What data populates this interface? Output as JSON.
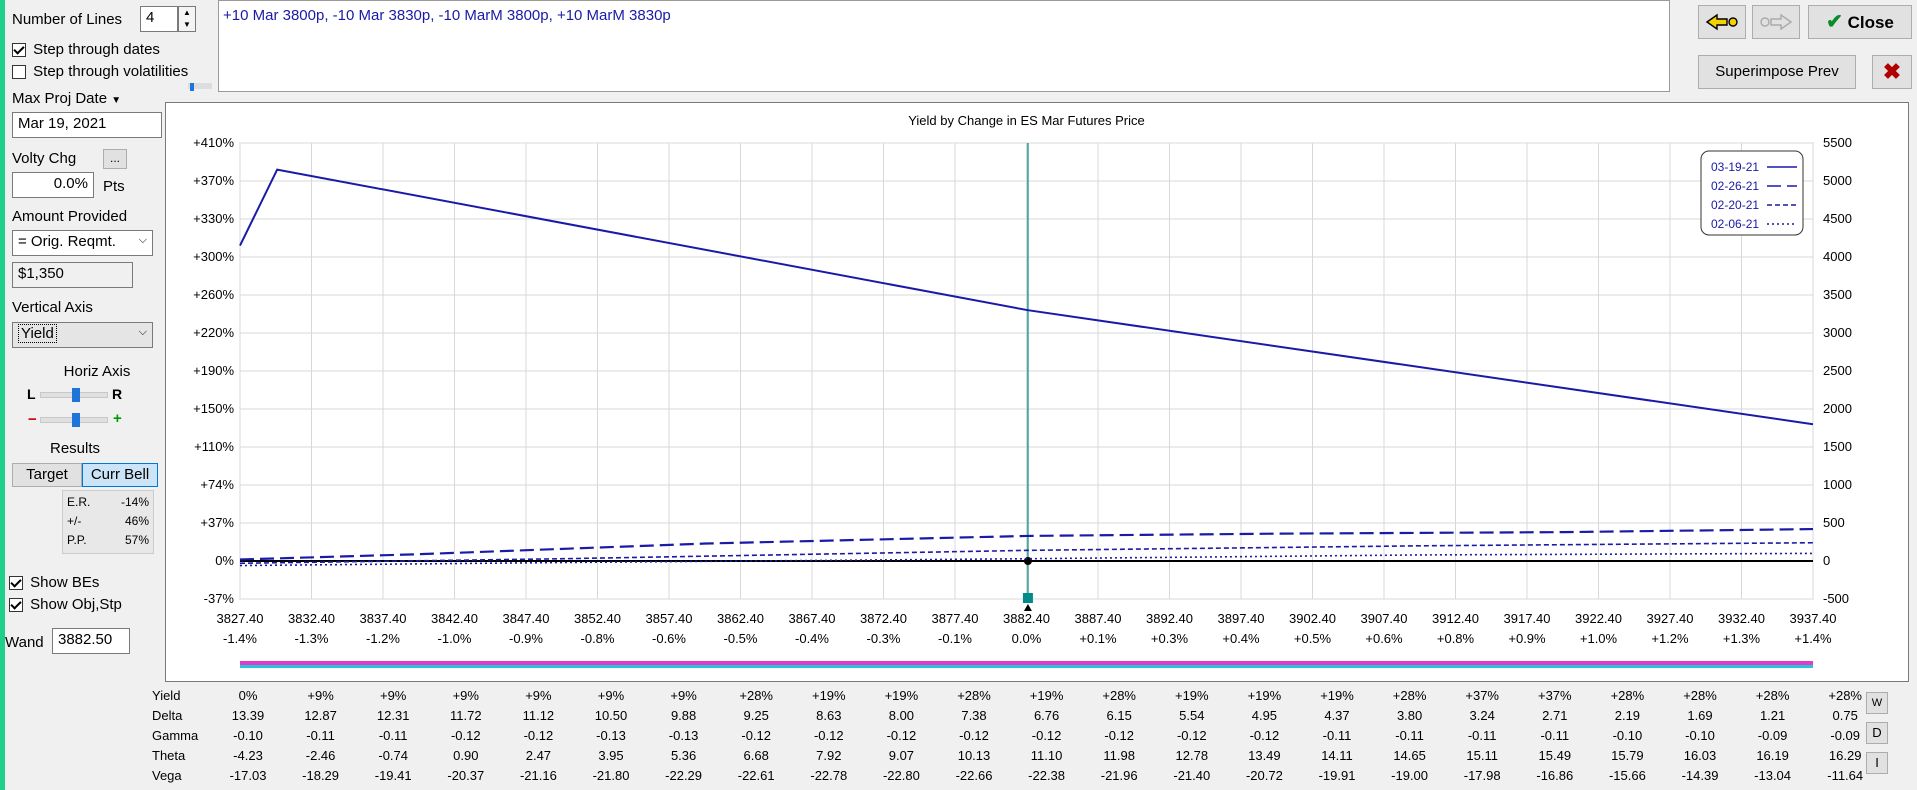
{
  "controls": {
    "num_lines_label": "Number of Lines",
    "num_lines_value": "4",
    "step_dates_label": "Step through dates",
    "step_vols_label": "Step through volatilities",
    "max_proj_label": "Max Proj Date",
    "max_proj_value": "Mar 19, 2021",
    "volty_label": "Volty Chg",
    "volty_btn": "...",
    "volty_value": "0.0%",
    "volty_unit": "Pts",
    "amount_label": "Amount Provided",
    "amount_select": "= Orig. Reqmt.",
    "amount_value": "$1,350",
    "vaxis_label": "Vertical Axis",
    "vaxis_value": "Yield",
    "haxis_label": "Horiz Axis",
    "haxis_l": "L",
    "haxis_r": "R",
    "haxis_minus": "−",
    "haxis_plus": "+",
    "results_label": "Results",
    "target_btn": "Target",
    "currbell_btn": "Curr Bell",
    "er_label": "E.R.",
    "er_value": "-14%",
    "pm_label": "+/-",
    "pm_value": "46%",
    "pp_label": "P.P.",
    "pp_value": "57%",
    "show_bes_label": "Show BEs",
    "show_obj_label": "Show Obj,Stp",
    "wand_label": "Wand",
    "wand_value": "3882.50"
  },
  "strategy_text": "+10 Mar 3800p, -10 Mar 3830p, -10 MarM 3800p, +10 MarM 3830p",
  "buttons": {
    "close": "Close",
    "superimpose": "Superimpose Prev"
  },
  "chart_data": {
    "type": "line",
    "title": "Yield by Change in ES Mar Futures Price",
    "x": [
      3827.4,
      3832.4,
      3837.4,
      3842.4,
      3847.4,
      3852.4,
      3857.4,
      3862.4,
      3867.4,
      3872.4,
      3877.4,
      3882.4,
      3887.4,
      3892.4,
      3897.4,
      3902.4,
      3907.4,
      3912.4,
      3917.4,
      3922.4,
      3927.4,
      3932.4,
      3937.4
    ],
    "x_pct_labels": [
      "-1.4%",
      "-1.3%",
      "-1.2%",
      "-1.0%",
      "-0.9%",
      "-0.8%",
      "-0.6%",
      "-0.5%",
      "-0.4%",
      "-0.3%",
      "-0.1%",
      "0.0%",
      "+0.1%",
      "+0.3%",
      "+0.4%",
      "+0.5%",
      "+0.6%",
      "+0.8%",
      "+0.9%",
      "+1.0%",
      "+1.2%",
      "+1.3%",
      "+1.4%"
    ],
    "y_left_ticks": [
      "+410%",
      "+370%",
      "+330%",
      "+300%",
      "+260%",
      "+220%",
      "+190%",
      "+150%",
      "+110%",
      "+74%",
      "+37%",
      "0%",
      "-37%"
    ],
    "y_right_ticks": [
      "5500",
      "5000",
      "4500",
      "4000",
      "3500",
      "3000",
      "2500",
      "2000",
      "1500",
      "1000",
      "500",
      "0",
      "-500"
    ],
    "ylim_dollars": [
      -500,
      5500
    ],
    "series": [
      {
        "name": "03-19-21",
        "style": "solid",
        "x": [
          3827.4,
          3830.0,
          3882.5,
          3937.4
        ],
        "y": [
          4150,
          5150,
          3300,
          1800
        ]
      },
      {
        "name": "02-26-21",
        "style": "longdash",
        "x": [
          3827.4,
          3840,
          3860,
          3882.5,
          3900,
          3920,
          3937.4
        ],
        "y": [
          20,
          90,
          230,
          330,
          360,
          380,
          420
        ]
      },
      {
        "name": "02-20-21",
        "style": "dashed",
        "x": [
          3827.4,
          3850,
          3882.5,
          3910,
          3937.4
        ],
        "y": [
          -30,
          30,
          140,
          200,
          240
        ]
      },
      {
        "name": "02-06-21",
        "style": "dotted",
        "x": [
          3827.4,
          3850,
          3882.5,
          3910,
          3937.4
        ],
        "y": [
          -60,
          -20,
          30,
          80,
          100
        ]
      }
    ],
    "legend_placement": "top-right",
    "current_price": 3882.5
  },
  "table": {
    "rows": [
      {
        "label": "Yield",
        "values": [
          "0%",
          "+9%",
          "+9%",
          "+9%",
          "+9%",
          "+9%",
          "+9%",
          "+28%",
          "+19%",
          "+19%",
          "+28%",
          "+19%",
          "+28%",
          "+19%",
          "+19%",
          "+19%",
          "+28%",
          "+37%",
          "+37%",
          "+28%",
          "+28%",
          "+28%",
          "+28%"
        ]
      },
      {
        "label": "Delta",
        "values": [
          "13.39",
          "12.87",
          "12.31",
          "11.72",
          "11.12",
          "10.50",
          "9.88",
          "9.25",
          "8.63",
          "8.00",
          "7.38",
          "6.76",
          "6.15",
          "5.54",
          "4.95",
          "4.37",
          "3.80",
          "3.24",
          "2.71",
          "2.19",
          "1.69",
          "1.21",
          "0.75"
        ]
      },
      {
        "label": "Gamma",
        "values": [
          "-0.10",
          "-0.11",
          "-0.11",
          "-0.12",
          "-0.12",
          "-0.13",
          "-0.13",
          "-0.12",
          "-0.12",
          "-0.12",
          "-0.12",
          "-0.12",
          "-0.12",
          "-0.12",
          "-0.12",
          "-0.11",
          "-0.11",
          "-0.11",
          "-0.11",
          "-0.10",
          "-0.10",
          "-0.09",
          "-0.09"
        ]
      },
      {
        "label": "Theta",
        "values": [
          "-4.23",
          "-2.46",
          "-0.74",
          "0.90",
          "2.47",
          "3.95",
          "5.36",
          "6.68",
          "7.92",
          "9.07",
          "10.13",
          "11.10",
          "11.98",
          "12.78",
          "13.49",
          "14.11",
          "14.65",
          "15.11",
          "15.49",
          "15.79",
          "16.03",
          "16.19",
          "16.29"
        ]
      },
      {
        "label": "Vega",
        "values": [
          "-17.03",
          "-18.29",
          "-19.41",
          "-20.37",
          "-21.16",
          "-21.80",
          "-22.29",
          "-22.61",
          "-22.78",
          "-22.80",
          "-22.66",
          "-22.38",
          "-21.96",
          "-21.40",
          "-20.72",
          "-19.91",
          "-19.00",
          "-17.98",
          "-16.86",
          "-15.66",
          "-14.39",
          "-13.04",
          "-11.64"
        ]
      }
    ],
    "side_buttons": [
      "W",
      "D",
      "I"
    ]
  },
  "colors": {
    "series": "#1a1aa8",
    "accent_teal": "#008b8b",
    "bar_magenta": "#e03cc8",
    "bar_cyan": "#20c8d8",
    "window_green_edge": "#1fd08a"
  }
}
